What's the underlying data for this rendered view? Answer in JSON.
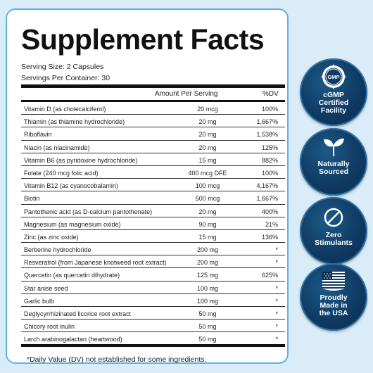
{
  "title": "Supplement Facts",
  "serving_size": "Serving Size: 2 Capsules",
  "servings_per_container": "Servings Per Container: 30",
  "header": {
    "amount": "Amount Per Serving",
    "dv": "%DV"
  },
  "rows": [
    {
      "name": "Vitamin D (as cholecalciferol)",
      "amount": "20 mcg",
      "dv": "100%"
    },
    {
      "name": "Thiamin (as thiamine hydrochloride)",
      "amount": "20 mg",
      "dv": "1,667%"
    },
    {
      "name": "Riboflavin",
      "amount": "20 mg",
      "dv": "1,538%"
    },
    {
      "name": "Niacin (as niacinamide)",
      "amount": "20 mg",
      "dv": "125%"
    },
    {
      "name": "Vitamin B6 (as pyridoxine hydrochloride)",
      "amount": "15 mg",
      "dv": "882%"
    },
    {
      "name": "Folate (240 mcg folic acid)",
      "amount": "400 mcg DFE",
      "dv": "100%"
    },
    {
      "name": "Vitamin B12 (as cyanocobalamin)",
      "amount": "100 mcg",
      "dv": "4,167%"
    },
    {
      "name": "Biotin",
      "amount": "500 mcg",
      "dv": "1,667%"
    },
    {
      "name": "Pantothenic acid (as D-calcium pantothenate)",
      "amount": "20 mg",
      "dv": "400%"
    },
    {
      "name": "Magnesium (as magnesium oxide)",
      "amount": "90 mg",
      "dv": "21%"
    },
    {
      "name": "Zinc (as zinc oxide)",
      "amount": "15 mg",
      "dv": "136%"
    },
    {
      "name": "Berberine hydrochloride",
      "amount": "200 mg",
      "dv": "*"
    },
    {
      "name": "Resveratrol (from Japanese knotweed root extract)",
      "amount": "200 mg",
      "dv": "*"
    },
    {
      "name": "Quercetin (as quercetin dihydrate)",
      "amount": "125 mg",
      "dv": "625%"
    },
    {
      "name": "Star anise seed",
      "amount": "100 mg",
      "dv": "*"
    },
    {
      "name": "Garlic bulb",
      "amount": "100 mg",
      "dv": "*"
    },
    {
      "name": "Deglycyrrhizinated licorice root extract",
      "amount": "50 mg",
      "dv": "*"
    },
    {
      "name": "Chicory root inulin",
      "amount": "50 mg",
      "dv": "*"
    },
    {
      "name": "Larch arabinogalactan (heartwood)",
      "amount": "50 mg",
      "dv": "*"
    }
  ],
  "footnote": "*Daily Value (DV) not established for some ingredients.",
  "badges": [
    {
      "icon": "gmp-seal-icon",
      "badge_text": "GMP",
      "label": "cGMP\nCertified\nFacility"
    },
    {
      "icon": "leaf-icon",
      "label": "Naturally\nSourced"
    },
    {
      "icon": "no-symbol-icon",
      "label": "Zero\nStimulants"
    },
    {
      "icon": "us-flag-icon",
      "label": "Proudly\nMade in\nthe USA"
    }
  ],
  "colors": {
    "background": "#d9ecf8",
    "panel_border": "#5db3e6",
    "badge": "#0f3a63"
  }
}
